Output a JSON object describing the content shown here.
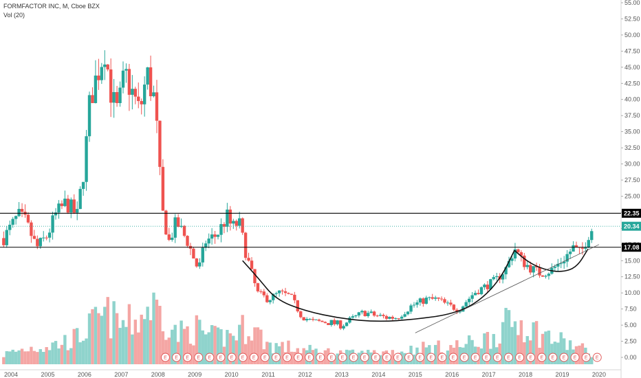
{
  "header": {
    "title": "FORMFACTOR INC, M, Cboe BZX",
    "volume_label": "Vol (20)"
  },
  "colors": {
    "up": "#26a69a",
    "down": "#ef5350",
    "vol_up": "#8fd3cc",
    "vol_down": "#f4a6a4",
    "level": "#000000",
    "last": "#26a69a"
  },
  "chart_data": {
    "type": "candlestick",
    "title": "FORMFACTOR INC, M, Cboe BZX",
    "x_ticks": [
      "2004",
      "2005",
      "2006",
      "2007",
      "2008",
      "2009",
      "2010",
      "2011",
      "2012",
      "2013",
      "2014",
      "2015",
      "2016",
      "2017",
      "2018",
      "2019",
      "2020"
    ],
    "y_ticks": [
      "55.00",
      "52.50",
      "50.00",
      "47.50",
      "45.00",
      "42.50",
      "40.00",
      "37.50",
      "35.00",
      "32.50",
      "30.00",
      "27.50",
      "25.00",
      "22.50",
      "20.00",
      "17.50",
      "15.00",
      "12.50",
      "10.00",
      "7.50",
      "5.00",
      "2.50",
      "0.00"
    ],
    "ylim": [
      0,
      55
    ],
    "horizontal_levels": [
      {
        "label": "22.35",
        "value": 22.35,
        "style": "solid"
      },
      {
        "label": "17.08",
        "value": 17.08,
        "style": "solid"
      },
      {
        "label": "20.34",
        "value": 20.34,
        "style": "dotted"
      }
    ],
    "last_price": "20.34",
    "earnings_marker": "E",
    "earnings_count": 40,
    "price_path": [
      [
        2003.8,
        18.5
      ],
      [
        2004.2,
        22
      ],
      [
        2004.4,
        21
      ],
      [
        2004.7,
        17
      ],
      [
        2005.0,
        19
      ],
      [
        2005.2,
        22
      ],
      [
        2005.5,
        24
      ],
      [
        2005.8,
        22
      ],
      [
        2006.0,
        30
      ],
      [
        2006.15,
        40
      ],
      [
        2006.35,
        44
      ],
      [
        2006.55,
        48
      ],
      [
        2006.75,
        40
      ],
      [
        2006.9,
        38
      ],
      [
        2007.1,
        44
      ],
      [
        2007.3,
        41
      ],
      [
        2007.5,
        38
      ],
      [
        2007.7,
        44
      ],
      [
        2007.9,
        40
      ],
      [
        2008.0,
        33
      ],
      [
        2008.1,
        23
      ],
      [
        2008.3,
        18
      ],
      [
        2008.5,
        21
      ],
      [
        2008.8,
        18
      ],
      [
        2009.1,
        13.5
      ],
      [
        2009.3,
        18
      ],
      [
        2009.6,
        19
      ],
      [
        2009.9,
        22
      ],
      [
        2010.0,
        20
      ],
      [
        2010.2,
        21
      ],
      [
        2010.4,
        16
      ],
      [
        2010.7,
        10
      ],
      [
        2011.0,
        9
      ],
      [
        2011.3,
        10
      ],
      [
        2011.6,
        9.5
      ],
      [
        2011.9,
        6.5
      ],
      [
        2012.2,
        5.5
      ],
      [
        2012.6,
        5.5
      ],
      [
        2013.0,
        5
      ],
      [
        2013.3,
        6
      ],
      [
        2013.6,
        7
      ],
      [
        2013.9,
        6.5
      ],
      [
        2014.2,
        6.2
      ],
      [
        2014.5,
        6.2
      ],
      [
        2014.9,
        8
      ],
      [
        2015.3,
        9
      ],
      [
        2015.6,
        9
      ],
      [
        2015.9,
        8
      ],
      [
        2016.2,
        7.5
      ],
      [
        2016.6,
        10
      ],
      [
        2016.9,
        11
      ],
      [
        2017.2,
        12
      ],
      [
        2017.5,
        14
      ],
      [
        2017.7,
        17
      ],
      [
        2017.9,
        15
      ],
      [
        2018.1,
        14
      ],
      [
        2018.4,
        13
      ],
      [
        2018.7,
        13.5
      ],
      [
        2019.0,
        15
      ],
      [
        2019.3,
        17
      ],
      [
        2019.5,
        16
      ],
      [
        2019.7,
        19
      ],
      [
        2019.85,
        20.34
      ]
    ],
    "volume_path": [
      [
        2003.8,
        1.5
      ],
      [
        2004.5,
        2.5
      ],
      [
        2005.2,
        3
      ],
      [
        2005.8,
        4
      ],
      [
        2006.2,
        6
      ],
      [
        2006.6,
        7.5
      ],
      [
        2007.0,
        6
      ],
      [
        2007.4,
        6.5
      ],
      [
        2007.8,
        9
      ],
      [
        2008.1,
        8
      ],
      [
        2008.5,
        4.5
      ],
      [
        2009.0,
        5.5
      ],
      [
        2009.5,
        4
      ],
      [
        2010.0,
        4.5
      ],
      [
        2010.5,
        6
      ],
      [
        2011.0,
        3
      ],
      [
        2011.6,
        2.5
      ],
      [
        2012.2,
        2
      ],
      [
        2012.8,
        1.8
      ],
      [
        2013.4,
        1.5
      ],
      [
        2014.0,
        1.8
      ],
      [
        2014.6,
        2
      ],
      [
        2015.2,
        2.5
      ],
      [
        2015.8,
        2.5
      ],
      [
        2016.4,
        3
      ],
      [
        2017.0,
        4
      ],
      [
        2017.5,
        6
      ],
      [
        2017.9,
        6.5
      ],
      [
        2018.3,
        5
      ],
      [
        2018.7,
        4
      ],
      [
        2019.2,
        3
      ],
      [
        2019.7,
        2
      ]
    ],
    "annotations": [
      {
        "type": "cup",
        "points": [
          [
            2010.3,
            15
          ],
          [
            2010.7,
            12.5
          ],
          [
            2011.2,
            9
          ],
          [
            2012.0,
            7.2
          ],
          [
            2013.0,
            6
          ],
          [
            2014.0,
            5.5
          ],
          [
            2015.0,
            5.9
          ],
          [
            2016.0,
            6.7
          ],
          [
            2016.7,
            8.5
          ],
          [
            2017.3,
            12
          ],
          [
            2017.7,
            16.6
          ]
        ]
      },
      {
        "type": "handle",
        "points": [
          [
            2017.7,
            16.6
          ],
          [
            2018.0,
            15
          ],
          [
            2018.5,
            13.6
          ],
          [
            2019.0,
            13.2
          ],
          [
            2019.4,
            14
          ],
          [
            2019.7,
            16.8
          ]
        ]
      },
      {
        "type": "trendline",
        "points": [
          [
            2015.0,
            3.8
          ],
          [
            2020.0,
            17.5
          ]
        ]
      }
    ]
  }
}
